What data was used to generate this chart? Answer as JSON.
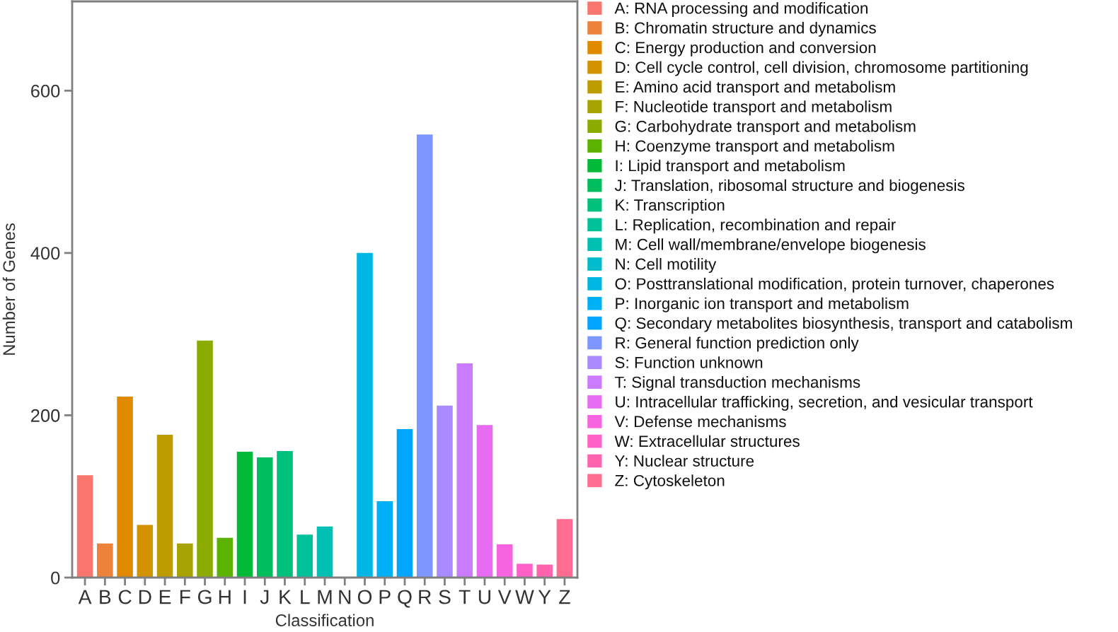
{
  "chart_data": {
    "type": "bar",
    "xlabel": "Classification",
    "ylabel": "Number of Genes",
    "categories": [
      "A",
      "B",
      "C",
      "D",
      "E",
      "F",
      "G",
      "H",
      "I",
      "J",
      "K",
      "L",
      "M",
      "N",
      "O",
      "P",
      "Q",
      "R",
      "S",
      "T",
      "U",
      "V",
      "W",
      "Y",
      "Z"
    ],
    "stacked": true,
    "series": [
      {
        "name": "A: RNA processing and modification",
        "color": "#f8766d",
        "values": [
          126,
          null,
          null,
          null,
          null,
          null,
          null,
          null,
          null,
          null,
          null,
          null,
          null,
          null,
          null,
          null,
          null,
          null,
          null,
          null,
          null,
          null,
          null,
          null,
          null
        ]
      },
      {
        "name": "B: Chromatin structure and dynamics",
        "color": "#ec823c",
        "values": [
          null,
          42,
          null,
          null,
          null,
          null,
          null,
          null,
          null,
          null,
          null,
          null,
          null,
          null,
          null,
          null,
          null,
          null,
          null,
          null,
          null,
          null,
          null,
          null,
          null
        ]
      },
      {
        "name": "C: Energy production and conversion",
        "color": "#e18a00",
        "values": [
          null,
          null,
          223,
          null,
          null,
          null,
          null,
          null,
          null,
          null,
          null,
          null,
          null,
          null,
          null,
          null,
          null,
          null,
          null,
          null,
          null,
          null,
          null,
          null,
          null
        ]
      },
      {
        "name": "D: Cell cycle control, cell division, chromosome partitioning",
        "color": "#d39200",
        "values": [
          null,
          null,
          null,
          65,
          null,
          null,
          null,
          null,
          null,
          null,
          null,
          null,
          null,
          null,
          null,
          null,
          null,
          null,
          null,
          null,
          null,
          null,
          null,
          null,
          null
        ]
      },
      {
        "name": "E: Amino acid transport and metabolism",
        "color": "#be9c00",
        "values": [
          null,
          null,
          null,
          null,
          176,
          null,
          null,
          null,
          null,
          null,
          null,
          null,
          null,
          null,
          null,
          null,
          null,
          null,
          null,
          null,
          null,
          null,
          null,
          null,
          null
        ]
      },
      {
        "name": "F: Nucleotide transport and metabolism",
        "color": "#a7a300",
        "values": [
          null,
          null,
          null,
          null,
          null,
          42,
          null,
          null,
          null,
          null,
          null,
          null,
          null,
          null,
          null,
          null,
          null,
          null,
          null,
          null,
          null,
          null,
          null,
          null,
          null
        ]
      },
      {
        "name": "G: Carbohydrate transport and metabolism",
        "color": "#8cab00",
        "values": [
          null,
          null,
          null,
          null,
          null,
          null,
          292,
          null,
          null,
          null,
          null,
          null,
          null,
          null,
          null,
          null,
          null,
          null,
          null,
          null,
          null,
          null,
          null,
          null,
          null
        ]
      },
      {
        "name": "H: Coenzyme transport and metabolism",
        "color": "#5bb300",
        "values": [
          null,
          null,
          null,
          null,
          null,
          null,
          null,
          49,
          null,
          null,
          null,
          null,
          null,
          null,
          null,
          null,
          null,
          null,
          null,
          null,
          null,
          null,
          null,
          null,
          null
        ]
      },
      {
        "name": "I: Lipid transport and metabolism",
        "color": "#00ba38",
        "values": [
          null,
          null,
          null,
          null,
          null,
          null,
          null,
          null,
          155,
          null,
          null,
          null,
          null,
          null,
          null,
          null,
          null,
          null,
          null,
          null,
          null,
          null,
          null,
          null,
          null
        ]
      },
      {
        "name": "J: Translation, ribosomal structure and biogenesis",
        "color": "#00bd5f",
        "values": [
          null,
          null,
          null,
          null,
          null,
          null,
          null,
          null,
          null,
          148,
          null,
          null,
          null,
          null,
          null,
          null,
          null,
          null,
          null,
          null,
          null,
          null,
          null,
          null,
          null
        ]
      },
      {
        "name": "K: Transcription",
        "color": "#00c07d",
        "values": [
          null,
          null,
          null,
          null,
          null,
          null,
          null,
          null,
          null,
          null,
          156,
          null,
          null,
          null,
          null,
          null,
          null,
          null,
          null,
          null,
          null,
          null,
          null,
          null,
          null
        ]
      },
      {
        "name": "L: Replication, recombination and repair",
        "color": "#00c19a",
        "values": [
          null,
          null,
          null,
          null,
          null,
          null,
          null,
          null,
          null,
          null,
          null,
          53,
          null,
          null,
          null,
          null,
          null,
          null,
          null,
          null,
          null,
          null,
          null,
          null,
          null
        ]
      },
      {
        "name": "M: Cell wall/membrane/envelope biogenesis",
        "color": "#00c0b4",
        "values": [
          null,
          null,
          null,
          null,
          null,
          null,
          null,
          null,
          null,
          null,
          null,
          null,
          63,
          null,
          null,
          null,
          null,
          null,
          null,
          null,
          null,
          null,
          null,
          null,
          null
        ]
      },
      {
        "name": "N: Cell motility",
        "color": "#00bccc",
        "values": [
          null,
          null,
          null,
          null,
          null,
          null,
          null,
          null,
          null,
          null,
          null,
          null,
          null,
          0,
          null,
          null,
          null,
          null,
          null,
          null,
          null,
          null,
          null,
          null,
          null
        ]
      },
      {
        "name": "O: Posttranslational modification, protein turnover, chaperones",
        "color": "#00b7e4",
        "values": [
          null,
          null,
          null,
          null,
          null,
          null,
          null,
          null,
          null,
          null,
          null,
          null,
          null,
          null,
          400,
          null,
          null,
          null,
          null,
          null,
          null,
          null,
          null,
          null,
          null
        ]
      },
      {
        "name": "P: Inorganic ion transport and metabolism",
        "color": "#00b0f6",
        "values": [
          null,
          null,
          null,
          null,
          null,
          null,
          null,
          null,
          null,
          null,
          null,
          null,
          null,
          null,
          null,
          94,
          null,
          null,
          null,
          null,
          null,
          null,
          null,
          null,
          null
        ]
      },
      {
        "name": "Q: Secondary metabolites biosynthesis, transport and catabolism",
        "color": "#00a5ff",
        "values": [
          null,
          null,
          null,
          null,
          null,
          null,
          null,
          null,
          null,
          null,
          null,
          null,
          null,
          null,
          null,
          null,
          183,
          null,
          null,
          null,
          null,
          null,
          null,
          null,
          null
        ]
      },
      {
        "name": "R: General function prediction only",
        "color": "#7e96ff",
        "values": [
          null,
          null,
          null,
          null,
          null,
          null,
          null,
          null,
          null,
          null,
          null,
          null,
          null,
          null,
          null,
          null,
          null,
          546,
          null,
          null,
          null,
          null,
          null,
          null,
          null
        ]
      },
      {
        "name": "S: Function unknown",
        "color": "#a98aff",
        "values": [
          null,
          null,
          null,
          null,
          null,
          null,
          null,
          null,
          null,
          null,
          null,
          null,
          null,
          null,
          null,
          null,
          null,
          null,
          212,
          null,
          null,
          null,
          null,
          null,
          null
        ]
      },
      {
        "name": "T: Signal transduction mechanisms",
        "color": "#cb7bff",
        "values": [
          null,
          null,
          null,
          null,
          null,
          null,
          null,
          null,
          null,
          null,
          null,
          null,
          null,
          null,
          null,
          null,
          null,
          null,
          null,
          264,
          null,
          null,
          null,
          null,
          null
        ]
      },
      {
        "name": "U: Intracellular trafficking, secretion, and vesicular transport",
        "color": "#e76bf3",
        "values": [
          null,
          null,
          null,
          null,
          null,
          null,
          null,
          null,
          null,
          null,
          null,
          null,
          null,
          null,
          null,
          null,
          null,
          null,
          null,
          null,
          188,
          null,
          null,
          null,
          null
        ]
      },
      {
        "name": "V: Defense mechanisms",
        "color": "#f763e0",
        "values": [
          null,
          null,
          null,
          null,
          null,
          null,
          null,
          null,
          null,
          null,
          null,
          null,
          null,
          null,
          null,
          null,
          null,
          null,
          null,
          null,
          null,
          41,
          null,
          null,
          null
        ]
      },
      {
        "name": "W: Extracellular structures",
        "color": "#ff61c9",
        "values": [
          null,
          null,
          null,
          null,
          null,
          null,
          null,
          null,
          null,
          null,
          null,
          null,
          null,
          null,
          null,
          null,
          null,
          null,
          null,
          null,
          null,
          null,
          17,
          null,
          null
        ]
      },
      {
        "name": "Y: Nuclear structure",
        "color": "#ff63ae",
        "values": [
          null,
          null,
          null,
          null,
          null,
          null,
          null,
          null,
          null,
          null,
          null,
          null,
          null,
          null,
          null,
          null,
          null,
          null,
          null,
          null,
          null,
          null,
          null,
          16,
          null
        ]
      },
      {
        "name": "Z: Cytoskeleton",
        "color": "#ff6c91",
        "values": [
          null,
          null,
          null,
          null,
          null,
          null,
          null,
          null,
          null,
          null,
          null,
          null,
          null,
          null,
          null,
          null,
          null,
          null,
          null,
          null,
          null,
          null,
          null,
          null,
          72
        ]
      }
    ],
    "ylim": [
      0,
      710
    ],
    "yticks": [
      0,
      200,
      400,
      600
    ],
    "grid": false,
    "legend": "right"
  }
}
